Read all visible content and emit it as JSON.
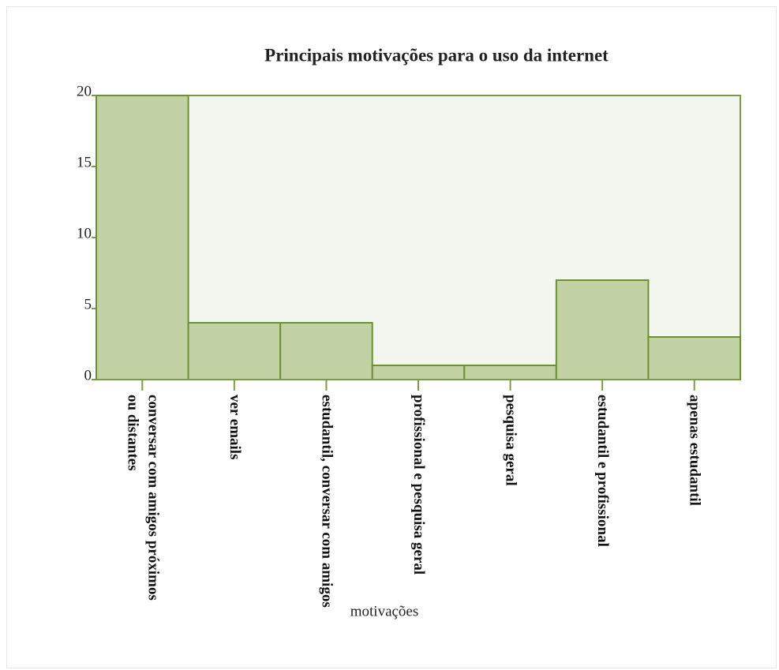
{
  "chart_data": {
    "type": "bar",
    "title": "Principais motivações para o uso da internet",
    "x_label": "motivações",
    "categories": [
      "conversar com amigos próximos ou distantes",
      "ver emails",
      "estudantil, conversar com amigos",
      "profissional e pesquisa geral",
      "pesquisa geral",
      "estudantil e profissional",
      "apenas estudantil"
    ],
    "values": [
      20,
      4,
      4,
      1,
      1,
      7,
      3
    ],
    "color": "#c2d1a3",
    "ylim": [
      0,
      20
    ],
    "yticks": [
      0,
      5,
      10,
      15,
      20
    ],
    "grid": false
  }
}
